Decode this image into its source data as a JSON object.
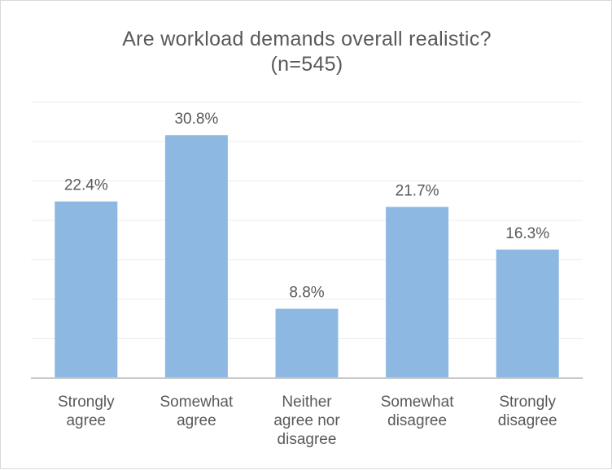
{
  "chart_data": {
    "type": "bar",
    "title": "Are workload demands overall realistic?",
    "subtitle": "(n=545)",
    "categories": [
      [
        "Strongly",
        "agree"
      ],
      [
        "Somewhat",
        "agree"
      ],
      [
        "Neither",
        "agree nor",
        "disagree"
      ],
      [
        "Somewhat",
        "disagree"
      ],
      [
        "Strongly",
        "disagree"
      ]
    ],
    "values": [
      22.4,
      30.8,
      8.8,
      21.7,
      16.3
    ],
    "data_labels": [
      "22.4%",
      "30.8%",
      "8.8%",
      "21.7%",
      "16.3%"
    ],
    "ylim": [
      0,
      35
    ],
    "grid": true,
    "legend": "none",
    "colors": {
      "bar": "#8db8e2",
      "grid": "#ececec",
      "axis": "#c9c9c9",
      "text": "#595959"
    }
  }
}
